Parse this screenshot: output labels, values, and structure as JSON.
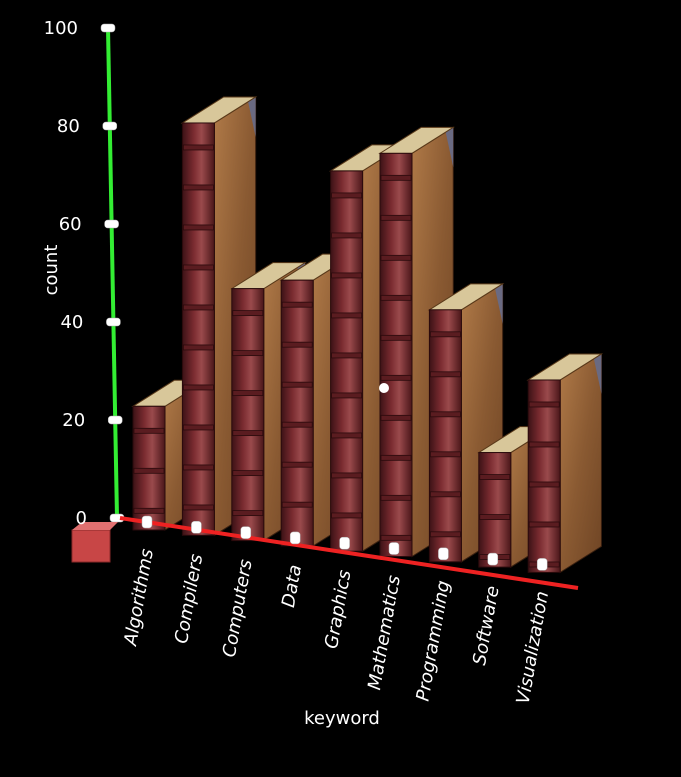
{
  "chart_data": {
    "type": "bar",
    "style": "3d-book-spines",
    "categories": [
      "Algorithms",
      "Compilers",
      "Computers",
      "Data",
      "Graphics",
      "Mathematics",
      "Programming",
      "Software",
      "Visualization"
    ],
    "values": [
      27,
      90,
      55,
      58,
      83,
      88,
      55,
      25,
      42
    ],
    "xlabel": "keyword",
    "ylabel": "count",
    "ylim": [
      0,
      100
    ],
    "yticks": [
      0,
      20,
      40,
      60,
      80,
      100
    ],
    "colors": {
      "y_axis": "#33ee33",
      "x_axis": "#ee2222",
      "spine_dark": "#3c1216",
      "spine_mid": "#7a2b30",
      "spine_light": "#9a4a4c",
      "cover": "#8a5a32",
      "cover_light": "#b07a48",
      "pages": "#d8c79a",
      "corner": "#6a6a82",
      "origin_cube": "#c84646"
    }
  }
}
